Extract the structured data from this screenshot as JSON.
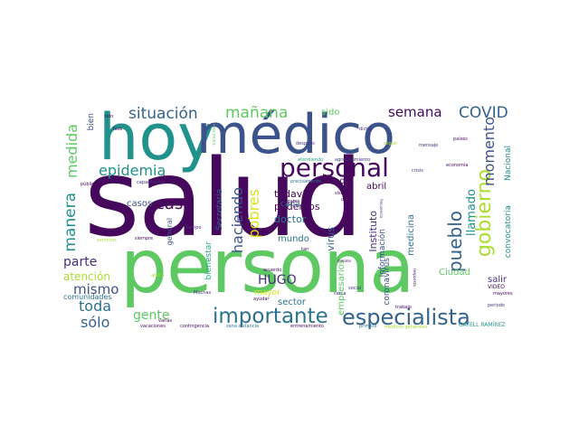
{
  "colors": {
    "background": "#ffffff",
    "dark_purple": "#46085c",
    "purple": "#472f7d",
    "indigo": "#3b528b",
    "blue": "#33638d",
    "steel": "#2c728e",
    "teal": "#21918c",
    "green_teal": "#27ad81",
    "green": "#5ec962",
    "lime": "#aadc32",
    "yellow": "#d8e219"
  },
  "words": {
    "salud": "salud",
    "persona": "persona",
    "hoy": "hoy",
    "medico": "médico",
    "personal": "personal",
    "especialista": "especialista",
    "importante": "importante",
    "gobierno": "gobierno",
    "situacion": "situación",
    "manana": "mañana",
    "covid": "COVID",
    "semana": "semana",
    "epidemia": "epidemia",
    "casa": "casa",
    "pueblo": "pueblo",
    "momento": "momento",
    "manera": "manera",
    "medida": "medida",
    "haciendo": "haciendo",
    "pobres": "pobres",
    "toda": "toda",
    "solo": "sólo",
    "mismo": "mismo",
    "parte": "parte",
    "gente": "gente",
    "hugo": "HUGO",
    "llamado": "llamado",
    "atencion": "atención",
    "todavia": "todavía",
    "podemos": "podemos",
    "doctor": "doctor",
    "abril": "abril",
    "ciudad": "Ciudad",
    "salir": "salir",
    "virus": "virus",
    "instituto": "Instituto",
    "medicina": "medicina",
    "convocatoria": "convocatoria",
    "nacional": "Nacional",
    "sido": "sido",
    "bien": "bien",
    "casos": "casos",
    "mundo": "mundo",
    "sector": "sector",
    "cada": "cada",
    "menos": "menos",
    "secretaria": "Secretaría",
    "bienestar": "bienestar",
    "general": "general",
    "mayor": "mayor",
    "empresarios": "empresarios",
    "coronavirus": "coronavirus",
    "informacion": "información",
    "comunidades": "comunidades",
    "gatell_ramirez": "GATELL RAMÍREZ",
    "video": "VIDEO",
    "mayores": "mayores",
    "periodo": "periodo",
    "economia": "economía",
    "paises": "países",
    "crisis": "crisis",
    "mensaje": "mensaje",
    "seguir": "seguir",
    "dicho": "dicho",
    "despues": "después",
    "atendiendo": "atendiendo",
    "agradecimiento": "agradecimiento",
    "precisamente": "precisamente",
    "capacitacion": "capacitación",
    "publico": "público",
    "fase": "fase",
    "sido_small": "sido",
    "secretario": "secretario",
    "servicios": "servicios",
    "siempre": "siempre",
    "tiempo": "tiempo",
    "lugares": "lugares",
    "sistema": "sistema",
    "dar": "dar",
    "tan": "tan",
    "acuerdo": "acuerdo",
    "ayudar": "ayudar",
    "entrenamiento": "entrenamiento",
    "sana_distancia": "sana distancia",
    "contingencia": "contingencia",
    "vacaciones": "vacaciones",
    "varias": "varias",
    "muchas": "Muchas",
    "trabajo": "trabajo",
    "primero": "primero",
    "social": "social",
    "medicos_generales": "médicos generales",
    "frecuencia": "frecuencia",
    "respuesta": "respuesta",
    "transmision": "transmisión",
    "ahora": "ahora",
    "cerca": "cerca",
    "minimo": "mínimo"
  }
}
